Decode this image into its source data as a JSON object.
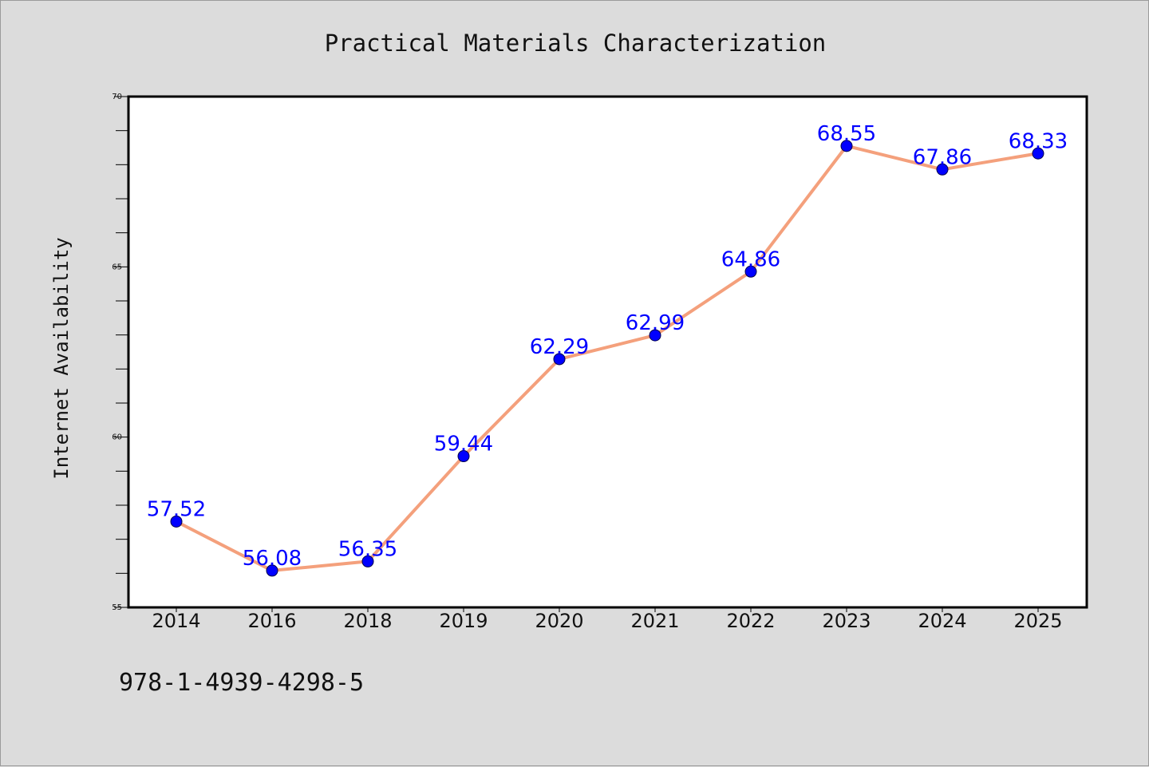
{
  "chart_data": {
    "type": "line",
    "title": "Practical Materials Characterization",
    "xlabel": "",
    "ylabel": "Internet Availability",
    "categories": [
      "2014",
      "2016",
      "2018",
      "2019",
      "2020",
      "2021",
      "2022",
      "2023",
      "2024",
      "2025"
    ],
    "series": [
      {
        "values": [
          57.52,
          56.08,
          56.35,
          59.44,
          62.29,
          62.99,
          64.86,
          68.55,
          67.86,
          68.33
        ],
        "labels": [
          "57.52",
          "56.08",
          "56.35",
          "59.44",
          "62.29",
          "62.99",
          "64.86",
          "68.55",
          "67.86",
          "68.33"
        ],
        "line_color": "#f4a07c",
        "marker_color": "#0000ff"
      }
    ],
    "ylim": [
      55,
      70
    ],
    "yticks": [
      55,
      60,
      65,
      70
    ],
    "ytick_labels": [
      "55",
      "60",
      "65",
      "70"
    ],
    "grid": false,
    "data_label_color": "#0000ff"
  },
  "footer": {
    "isbn": "978-1-4939-4298-5"
  }
}
